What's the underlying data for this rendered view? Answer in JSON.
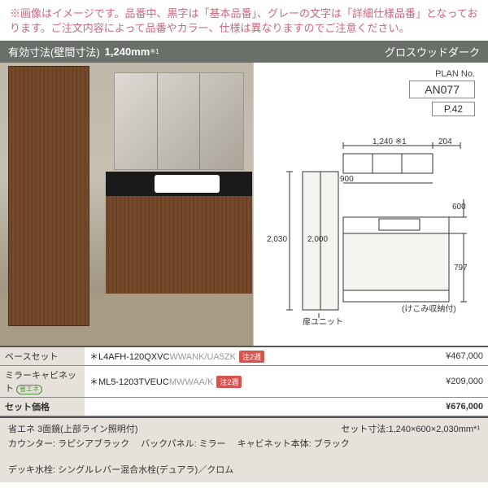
{
  "caution": "※画像はイメージです。品番中、黒字は「基本品番」、グレーの文字は「詳細仕様品番」となっております。ご注文内容によって品番やカラー、仕様は異なりますのでご注意ください。",
  "header": {
    "dim_label": "有効寸法(壁間寸法)",
    "dim_value": "1,240mm",
    "dim_sup": "※1",
    "style_name": "グロスウッドダーク"
  },
  "plan": {
    "label": "PLAN No.",
    "number": "AN077",
    "page": "P.42"
  },
  "diagram": {
    "w_total": "1,240 ※1",
    "d_top": "204",
    "w_cab": "900",
    "d_counter": "600",
    "h_total": "2,030",
    "h_side": "2,000",
    "h_counter": "797",
    "door_unit_label": "扉ユニット",
    "kekomi_label": "(けこみ収納付)"
  },
  "table": {
    "rows": [
      {
        "label": "ベースセット",
        "green": false,
        "code_black": "＊L4AFH-120QXVC",
        "code_grey": "WWANK/UA5ZK",
        "badge": "注2週",
        "price": "¥467,000"
      },
      {
        "label": "ミラーキャビネット",
        "green": true,
        "code_black": "＊ML5-1203TVEUC",
        "code_grey": "MWWAA/K",
        "badge": "注2週",
        "price": "¥209,000"
      },
      {
        "label": "セット価格",
        "green": false,
        "code_black": "",
        "code_grey": "",
        "badge": "",
        "price": "¥676,000",
        "bold": true
      }
    ]
  },
  "bottom": {
    "mirror_spec_badge": "省エネ",
    "mirror_spec": "3面鏡(上部ライン照明付)",
    "set_dim_label": "セット寸法:",
    "set_dim": "1,240×600×2,030mm*¹",
    "specs": [
      [
        "カウンター:",
        "ラピシアブラック"
      ],
      [
        "バックパネル:",
        "ミラー"
      ],
      [
        "キャビネット本体:",
        "ブラック"
      ],
      [
        "デッキ水栓:",
        "シングルレバー混合水栓(デュアラ)／クロム"
      ]
    ]
  }
}
